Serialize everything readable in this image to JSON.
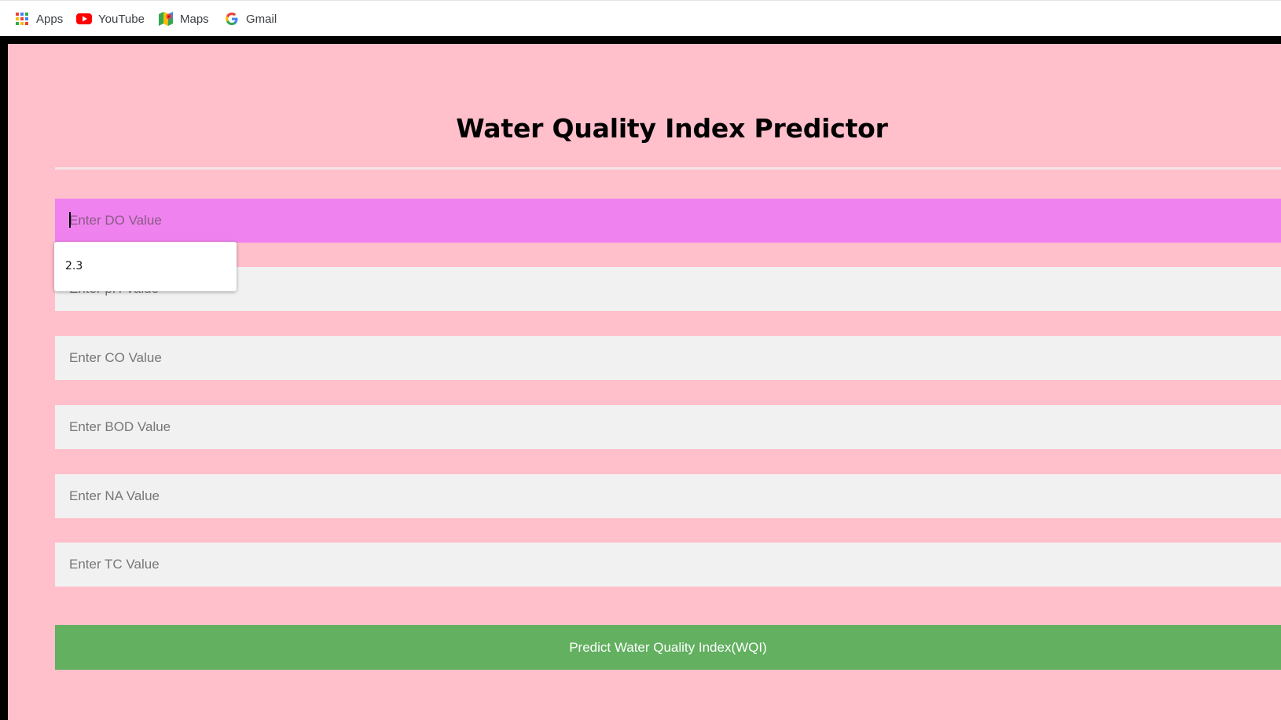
{
  "bookmarks": {
    "items": [
      {
        "label": "Apps",
        "icon": "apps-grid-icon"
      },
      {
        "label": "YouTube",
        "icon": "youtube-icon"
      },
      {
        "label": "Maps",
        "icon": "maps-icon"
      },
      {
        "label": "Gmail",
        "icon": "google-icon"
      }
    ]
  },
  "page": {
    "title": "Water Quality Index Predictor",
    "background_color": "#ffbfcb"
  },
  "form": {
    "fields": [
      {
        "name": "do",
        "placeholder": "Enter DO Value",
        "value": "",
        "focused": true
      },
      {
        "name": "ph",
        "placeholder": "Enter pH Value",
        "value": ""
      },
      {
        "name": "co",
        "placeholder": "Enter CO Value",
        "value": ""
      },
      {
        "name": "bod",
        "placeholder": "Enter BOD Value",
        "value": ""
      },
      {
        "name": "na",
        "placeholder": "Enter NA Value",
        "value": ""
      },
      {
        "name": "tc",
        "placeholder": "Enter TC Value",
        "value": ""
      }
    ],
    "autocomplete": {
      "suggestions": [
        "2.3"
      ]
    },
    "submit_label": "Predict Water Quality Index(WQI)"
  },
  "colors": {
    "focused_field": "#ef82ee",
    "field": "#f1f1f1",
    "button": "#62b060"
  }
}
